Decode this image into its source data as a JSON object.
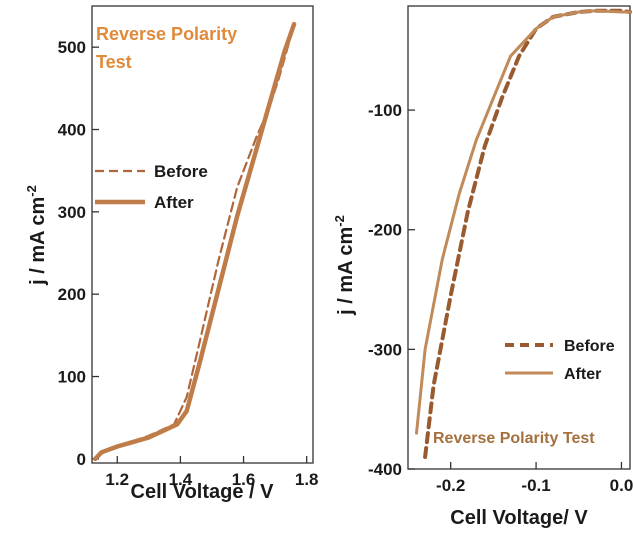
{
  "chart_data": [
    {
      "type": "line",
      "title": "Reverse Polarity Test",
      "xlabel": "Cell Voltage / V",
      "ylabel": "j / mA cm",
      "ylabel_sup": "-2",
      "xlim": [
        1.12,
        1.82
      ],
      "ylim": [
        -5,
        550
      ],
      "xticks": [
        1.2,
        1.4,
        1.6,
        1.8
      ],
      "xtick_labels": [
        "1.2",
        "1.4",
        "1.6",
        "1.8"
      ],
      "yticks": [
        0,
        100,
        200,
        300,
        400,
        500
      ],
      "ytick_labels": [
        "0",
        "100",
        "200",
        "300",
        "400",
        "500"
      ],
      "legend_position": "center-left",
      "colors": {
        "before": "#b0653a",
        "after": "#c07c48",
        "title": "#e08a3c"
      },
      "series": [
        {
          "name": "Before",
          "style": "dashed",
          "x": [
            1.13,
            1.15,
            1.2,
            1.3,
            1.38,
            1.42,
            1.46,
            1.52,
            1.58,
            1.64,
            1.68,
            1.71,
            1.74,
            1.76
          ],
          "y": [
            0,
            8,
            15,
            28,
            42,
            75,
            140,
            240,
            330,
            390,
            425,
            460,
            500,
            528
          ]
        },
        {
          "name": "After",
          "style": "solid",
          "x": [
            1.13,
            1.15,
            1.2,
            1.3,
            1.39,
            1.42,
            1.46,
            1.52,
            1.58,
            1.64,
            1.7,
            1.73,
            1.76
          ],
          "y": [
            0,
            8,
            15,
            26,
            42,
            58,
            115,
            205,
            295,
            375,
            455,
            495,
            528
          ]
        }
      ]
    },
    {
      "type": "line",
      "title": "Reverse Polarity Test",
      "xlabel": "Cell Voltage/ V",
      "ylabel": "j / mA cm",
      "ylabel_sup": "-2",
      "xlim": [
        -0.25,
        0.01
      ],
      "ylim": [
        -400,
        -13
      ],
      "xticks": [
        -0.2,
        -0.1,
        0.0
      ],
      "xtick_labels": [
        "-0.2",
        "-0.1",
        "0.0"
      ],
      "yticks": [
        -100,
        -200,
        -300,
        -400
      ],
      "ytick_labels": [
        "-100",
        "-200",
        "-300",
        "-400"
      ],
      "legend_position": "lower-right",
      "colors": {
        "before": "#9a5a30",
        "after": "#c08a5a",
        "title": "#a4703e"
      },
      "series": [
        {
          "name": "Before",
          "style": "dashed",
          "x": [
            -0.23,
            -0.22,
            -0.2,
            -0.18,
            -0.16,
            -0.14,
            -0.12,
            -0.1,
            -0.08,
            -0.05,
            -0.03,
            0.0,
            0.01
          ],
          "y": [
            -390,
            -330,
            -255,
            -185,
            -130,
            -90,
            -55,
            -32,
            -22,
            -18,
            -17,
            -17,
            -18
          ]
        },
        {
          "name": "After",
          "style": "solid",
          "x": [
            -0.24,
            -0.23,
            -0.21,
            -0.19,
            -0.17,
            -0.15,
            -0.13,
            -0.1,
            -0.08,
            -0.05,
            -0.03,
            0.0,
            0.01
          ],
          "y": [
            -370,
            -300,
            -225,
            -170,
            -125,
            -90,
            -55,
            -32,
            -22,
            -18,
            -17,
            -18,
            -18
          ]
        }
      ]
    }
  ]
}
